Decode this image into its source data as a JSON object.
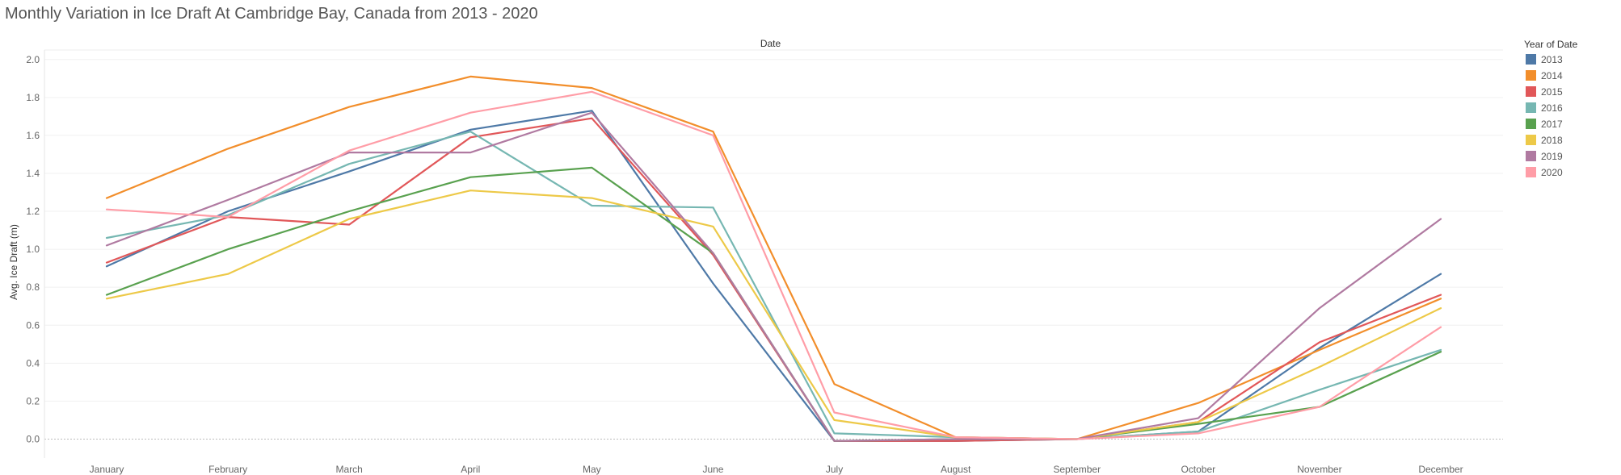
{
  "chart_data": {
    "type": "line",
    "title": "Monthly Variation in Ice Draft At Cambridge Bay, Canada from 2013 - 2020",
    "xlabel": "Date",
    "ylabel": "Avg. Ice Draft (m)",
    "ylim": [
      -0.1,
      2.05
    ],
    "yticks": [
      "0.0",
      "0.2",
      "0.4",
      "0.6",
      "0.8",
      "1.0",
      "1.2",
      "1.4",
      "1.6",
      "1.8",
      "2.0"
    ],
    "grid": true,
    "legend_position": "right",
    "legend_title": "Year of Date",
    "categories": [
      "January",
      "February",
      "March",
      "April",
      "May",
      "June",
      "July",
      "August",
      "September",
      "October",
      "November",
      "December"
    ],
    "series": [
      {
        "name": "2013",
        "color": "#4e79a7",
        "values": [
          0.91,
          1.2,
          1.41,
          1.63,
          1.73,
          0.82,
          -0.01,
          -0.01,
          0.0,
          0.04,
          0.48,
          0.87
        ]
      },
      {
        "name": "2014",
        "color": "#f28e2b",
        "values": [
          1.27,
          1.53,
          1.75,
          1.91,
          1.85,
          1.62,
          0.29,
          0.01,
          0.0,
          0.19,
          0.47,
          0.74
        ]
      },
      {
        "name": "2015",
        "color": "#e15759",
        "values": [
          0.93,
          1.17,
          1.13,
          1.59,
          1.69,
          0.97,
          -0.01,
          -0.01,
          0.0,
          0.09,
          0.51,
          0.76
        ]
      },
      {
        "name": "2016",
        "color": "#76b7b2",
        "values": [
          1.06,
          1.18,
          1.45,
          1.62,
          1.23,
          1.22,
          0.03,
          0.01,
          0.0,
          0.04,
          0.26,
          0.47
        ]
      },
      {
        "name": "2017",
        "color": "#59a14f",
        "values": [
          0.76,
          1.0,
          1.2,
          1.38,
          1.43,
          0.98,
          -0.01,
          0.0,
          0.0,
          0.08,
          0.17,
          0.46
        ]
      },
      {
        "name": "2018",
        "color": "#edc948",
        "values": [
          0.74,
          0.87,
          1.16,
          1.31,
          1.27,
          1.12,
          0.1,
          0.01,
          0.0,
          0.09,
          0.38,
          0.69
        ]
      },
      {
        "name": "2019",
        "color": "#b07aa1",
        "values": [
          1.02,
          1.26,
          1.51,
          1.51,
          1.72,
          0.98,
          -0.01,
          0.0,
          0.0,
          0.11,
          0.69,
          1.16
        ]
      },
      {
        "name": "2020",
        "color": "#ff9da7",
        "values": [
          1.21,
          1.17,
          1.52,
          1.72,
          1.83,
          1.6,
          0.14,
          0.01,
          0.0,
          0.03,
          0.17,
          0.59
        ]
      }
    ]
  }
}
